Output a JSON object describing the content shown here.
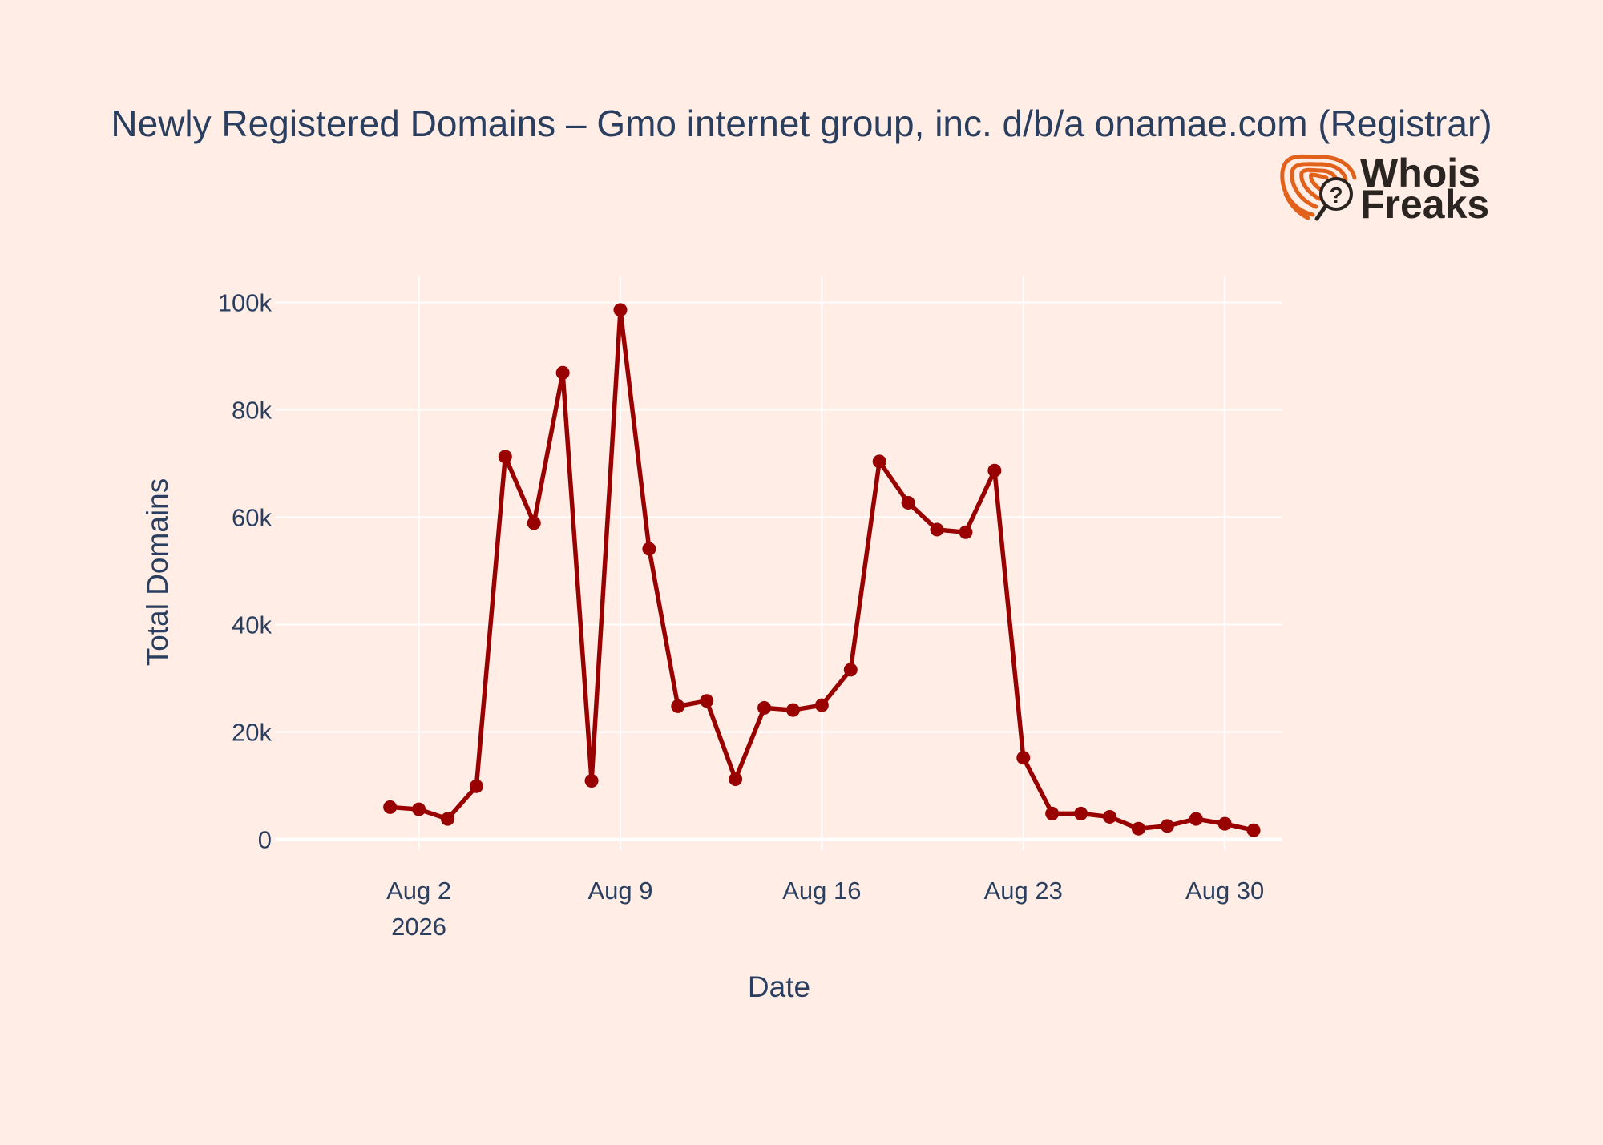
{
  "chart_data": {
    "type": "line",
    "title": "Newly Registered Domains – Gmo internet group, inc. d/b/a onamae.com (Registrar)",
    "xlabel": "Date",
    "ylabel": "Total Domains",
    "x_range": [
      "2026-07-28",
      "2026-09-01"
    ],
    "ylim": [
      -2000,
      105000
    ],
    "y_ticks": [
      0,
      20000,
      40000,
      60000,
      80000,
      100000
    ],
    "y_tick_labels": [
      "0",
      "20k",
      "40k",
      "60k",
      "80k",
      "100k"
    ],
    "x_ticks": [
      {
        "date": "2026-08-02",
        "label": "Aug 2",
        "sublabel": "2026"
      },
      {
        "date": "2026-08-09",
        "label": "Aug 9",
        "sublabel": ""
      },
      {
        "date": "2026-08-16",
        "label": "Aug 16",
        "sublabel": ""
      },
      {
        "date": "2026-08-23",
        "label": "Aug 23",
        "sublabel": ""
      },
      {
        "date": "2026-08-30",
        "label": "Aug 30",
        "sublabel": ""
      }
    ],
    "grid": true,
    "legend": "none",
    "line_color": "#990000",
    "series": [
      {
        "x": [
          "2026-08-01",
          "2026-08-02",
          "2026-08-03",
          "2026-08-04",
          "2026-08-05",
          "2026-08-06",
          "2026-08-07",
          "2026-08-08",
          "2026-08-09",
          "2026-08-10",
          "2026-08-11",
          "2026-08-12",
          "2026-08-13",
          "2026-08-14",
          "2026-08-15",
          "2026-08-16",
          "2026-08-17",
          "2026-08-18",
          "2026-08-19",
          "2026-08-20",
          "2026-08-21",
          "2026-08-22",
          "2026-08-23",
          "2026-08-24",
          "2026-08-25",
          "2026-08-26",
          "2026-08-27",
          "2026-08-28",
          "2026-08-29",
          "2026-08-30",
          "2026-08-31"
        ],
        "values": [
          6000,
          5600,
          3800,
          9900,
          71300,
          58900,
          86900,
          10900,
          98600,
          54100,
          24800,
          25800,
          11200,
          24500,
          24100,
          25000,
          31600,
          70400,
          62700,
          57700,
          57200,
          68700,
          15200,
          4800,
          4800,
          4200,
          2000,
          2500,
          3800,
          2900,
          1700
        ]
      }
    ]
  },
  "logo": {
    "line1": "Whois",
    "line2": "Freaks",
    "icon": "fingerprint-magnifier-icon",
    "accent": "#e2621b"
  }
}
